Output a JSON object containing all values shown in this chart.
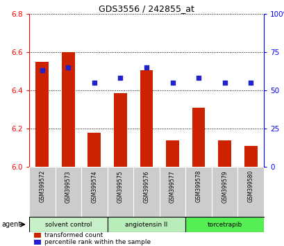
{
  "title": "GDS3556 / 242855_at",
  "samples": [
    "GSM399572",
    "GSM399573",
    "GSM399574",
    "GSM399575",
    "GSM399576",
    "GSM399577",
    "GSM399578",
    "GSM399579",
    "GSM399580"
  ],
  "bar_values": [
    6.55,
    6.6,
    6.18,
    6.385,
    6.505,
    6.14,
    6.31,
    6.14,
    6.11
  ],
  "percentile_values": [
    63,
    65,
    55,
    58,
    65,
    55,
    58,
    55,
    55
  ],
  "bar_color": "#cc2200",
  "dot_color": "#2222cc",
  "ylim_left": [
    6.0,
    6.8
  ],
  "ylim_right": [
    0,
    100
  ],
  "yticks_left": [
    6.0,
    6.2,
    6.4,
    6.6,
    6.8
  ],
  "yticks_right": [
    0,
    25,
    50,
    75,
    100
  ],
  "ytick_labels_right": [
    "0",
    "25",
    "50",
    "75",
    "100%"
  ],
  "groups": [
    {
      "label": "solvent control",
      "indices": [
        0,
        1,
        2
      ],
      "color": "#c8f0c8"
    },
    {
      "label": "angiotensin II",
      "indices": [
        3,
        4,
        5
      ],
      "color": "#b8ecb8"
    },
    {
      "label": "torcetrapib",
      "indices": [
        6,
        7,
        8
      ],
      "color": "#55ee55"
    }
  ],
  "legend_bar_label": "transformed count",
  "legend_dot_label": "percentile rank within the sample",
  "agent_label": "agent",
  "sample_box_color": "#cccccc",
  "bar_width": 0.5
}
